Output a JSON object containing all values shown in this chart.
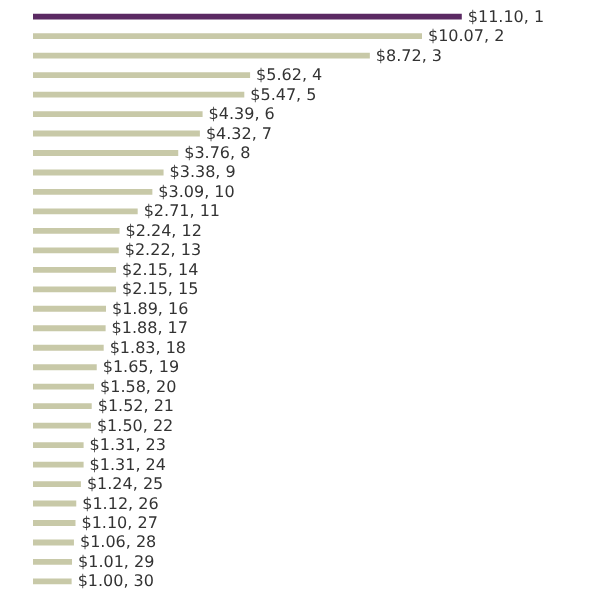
{
  "chart_data": {
    "type": "bar",
    "orientation": "horizontal",
    "categories": [
      null,
      null,
      null,
      null,
      null,
      null,
      null,
      null,
      null,
      null,
      null,
      null,
      null,
      null,
      null,
      null,
      null,
      null,
      null,
      null,
      null,
      null,
      null,
      null,
      null,
      null,
      null,
      null,
      null,
      null
    ],
    "values": [
      11.1,
      10.07,
      8.72,
      5.62,
      5.47,
      4.39,
      4.32,
      3.76,
      3.38,
      3.09,
      2.71,
      2.24,
      2.22,
      2.15,
      2.15,
      1.89,
      1.88,
      1.83,
      1.65,
      1.58,
      1.52,
      1.5,
      1.31,
      1.31,
      1.24,
      1.12,
      1.1,
      1.06,
      1.01,
      1.0
    ],
    "value_labels": [
      "$11.10, 1",
      "$10.07, 2",
      "$8.72, 3",
      "$5.62, 4",
      "$5.47, 5",
      "$4.39, 6",
      "$4.32, 7",
      "$3.76, 8",
      "$3.38, 9",
      "$3.09, 10",
      "$2.71, 11",
      "$2.24, 12",
      "$2.22, 13",
      "$2.15, 14",
      "$2.15, 15",
      "$1.89, 16",
      "$1.88, 17",
      "$1.83, 18",
      "$1.65, 19",
      "$1.58, 20",
      "$1.52, 21",
      "$1.50, 22",
      "$1.31, 23",
      "$1.31, 24",
      "$1.24, 25",
      "$1.12, 26",
      "$1.10, 27",
      "$1.06, 28",
      "$1.01, 29",
      "$1.00, 30"
    ],
    "colors": [
      "#5b2a63",
      "#c8c9a8",
      "#c8c9a8",
      "#c8c9a8",
      "#c8c9a8",
      "#c8c9a8",
      "#c8c9a8",
      "#c8c9a8",
      "#c8c9a8",
      "#c8c9a8",
      "#c8c9a8",
      "#c8c9a8",
      "#c8c9a8",
      "#c8c9a8",
      "#c8c9a8",
      "#c8c9a8",
      "#c8c9a8",
      "#c8c9a8",
      "#c8c9a8",
      "#c8c9a8",
      "#c8c9a8",
      "#c8c9a8",
      "#c8c9a8",
      "#c8c9a8",
      "#c8c9a8",
      "#c8c9a8",
      "#c8c9a8",
      "#c8c9a8",
      "#c8c9a8",
      "#c8c9a8"
    ],
    "grid": false
  }
}
